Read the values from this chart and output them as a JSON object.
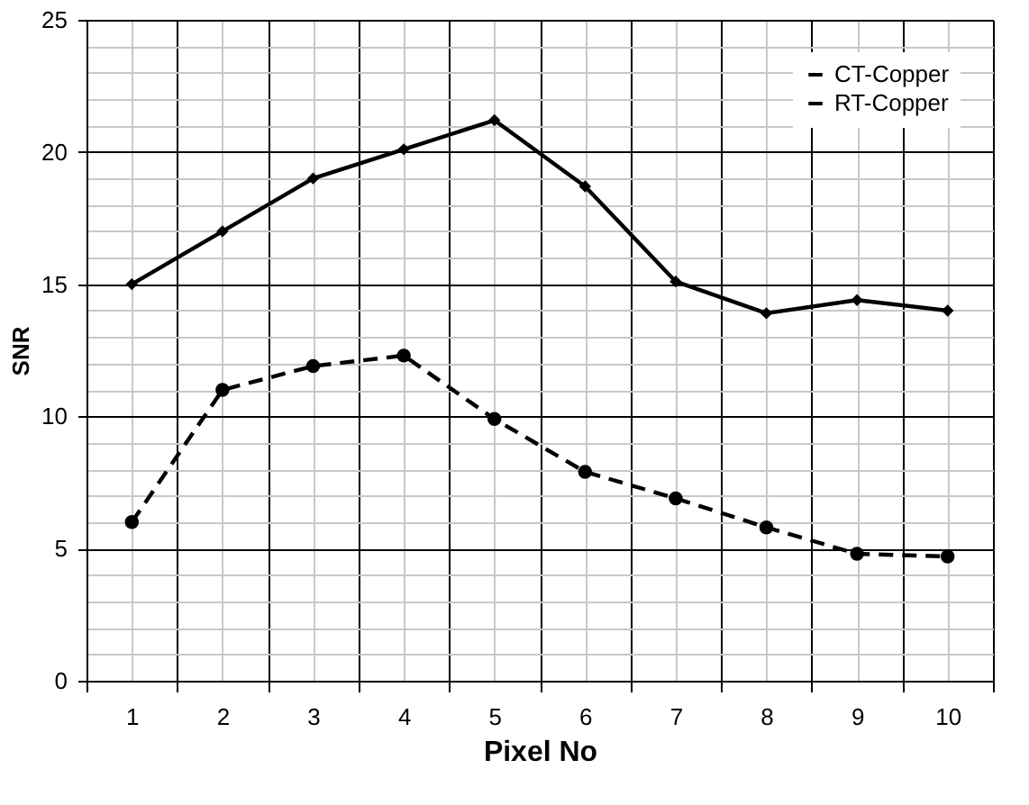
{
  "chart_data": {
    "type": "line",
    "xlabel": "Pixel No",
    "ylabel": "SNR",
    "categories": [
      "1",
      "2",
      "3",
      "4",
      "5",
      "6",
      "7",
      "8",
      "9",
      "10"
    ],
    "series": [
      {
        "name": "CT-Copper",
        "color": "#000000",
        "marker": "diamond",
        "line_style": "solid",
        "values": [
          15,
          17,
          19,
          20.1,
          21.2,
          18.7,
          15.1,
          13.9,
          14.4,
          14
        ]
      },
      {
        "name": "RT-Copper",
        "color": "#000000",
        "marker": "circle",
        "line_style": "dashed",
        "values": [
          6,
          11,
          11.9,
          12.3,
          9.9,
          7.9,
          6.9,
          5.8,
          4.8,
          4.7
        ]
      }
    ],
    "ylim": [
      0,
      25
    ],
    "yticks": [
      0,
      {
        "value": 1,
        "label": null
      },
      {
        "value": 2,
        "label": null
      },
      {
        "value": 3,
        "label": null
      },
      {
        "value": 4,
        "label": null
      },
      5,
      {
        "value": 6,
        "label": null
      },
      {
        "value": 7,
        "label": null
      },
      {
        "value": 8,
        "label": null
      },
      {
        "value": 9,
        "label": null
      },
      10,
      {
        "value": 11,
        "label": null
      },
      {
        "value": 12,
        "label": null
      },
      {
        "value": 13,
        "label": null
      },
      {
        "value": 14,
        "label": null
      },
      15,
      {
        "value": 16,
        "label": null
      },
      {
        "value": 17,
        "label": null
      },
      {
        "value": 18,
        "label": null
      },
      {
        "value": 19,
        "label": null
      },
      20,
      {
        "value": 21,
        "label": null
      },
      {
        "value": 22,
        "label": null
      },
      {
        "value": 23,
        "label": null
      },
      {
        "value": 24,
        "label": null
      },
      25
    ],
    "grid": true,
    "legend": "top right"
  }
}
